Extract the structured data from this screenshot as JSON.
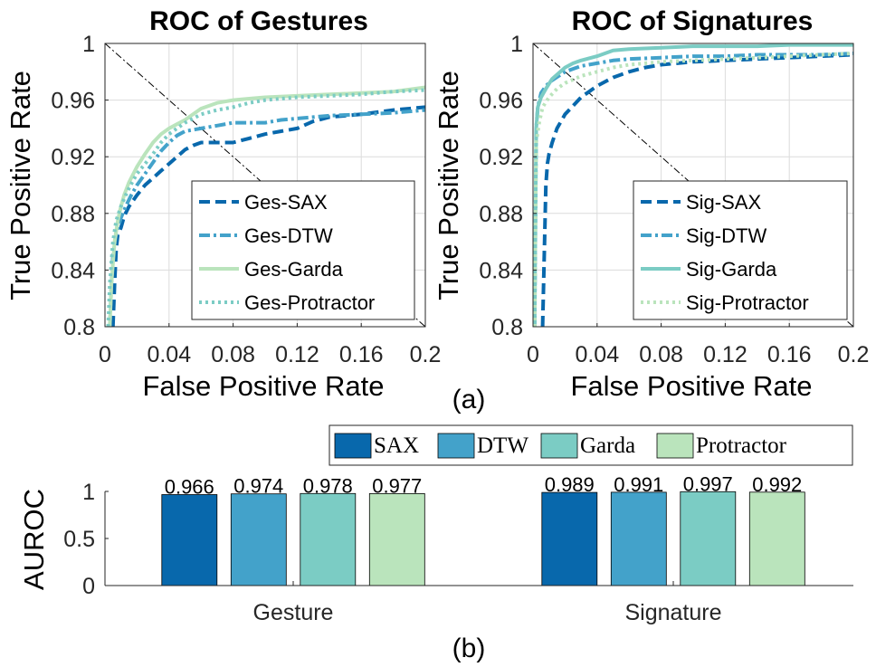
{
  "chart_data": [
    {
      "type": "line",
      "title": "ROC of Gestures",
      "xlabel": "False Positive Rate",
      "ylabel": "True Positive Rate",
      "xlim": [
        0,
        0.2
      ],
      "ylim": [
        0.8,
        1
      ],
      "xticks": [
        "0",
        "0.04",
        "0.08",
        "0.12",
        "0.16",
        "0.2"
      ],
      "yticks": [
        "0.8",
        "0.84",
        "0.88",
        "0.92",
        "0.96",
        "1"
      ],
      "legend_position": "bottom-right",
      "grid": true,
      "diagonal": true,
      "series": [
        {
          "name": "Ges-SAX",
          "color": "#0868ac",
          "style": "dashed",
          "x": [
            0.005,
            0.006,
            0.007,
            0.008,
            0.01,
            0.012,
            0.015,
            0.02,
            0.025,
            0.03,
            0.035,
            0.04,
            0.045,
            0.05,
            0.055,
            0.06,
            0.07,
            0.08,
            0.09,
            0.1,
            0.11,
            0.12,
            0.13,
            0.14,
            0.16,
            0.18,
            0.2
          ],
          "y": [
            0.8,
            0.83,
            0.855,
            0.865,
            0.87,
            0.878,
            0.885,
            0.893,
            0.9,
            0.905,
            0.91,
            0.915,
            0.92,
            0.925,
            0.928,
            0.93,
            0.93,
            0.93,
            0.933,
            0.936,
            0.938,
            0.94,
            0.945,
            0.948,
            0.95,
            0.953,
            0.955
          ]
        },
        {
          "name": "Ges-DTW",
          "color": "#43a2ca",
          "style": "dashdot",
          "x": [
            0.003,
            0.004,
            0.005,
            0.007,
            0.01,
            0.013,
            0.016,
            0.02,
            0.025,
            0.03,
            0.035,
            0.04,
            0.045,
            0.05,
            0.06,
            0.07,
            0.08,
            0.09,
            0.1,
            0.11,
            0.12,
            0.13,
            0.14,
            0.16,
            0.18,
            0.2
          ],
          "y": [
            0.8,
            0.83,
            0.85,
            0.866,
            0.877,
            0.885,
            0.892,
            0.9,
            0.908,
            0.916,
            0.924,
            0.93,
            0.935,
            0.938,
            0.94,
            0.942,
            0.944,
            0.944,
            0.944,
            0.946,
            0.947,
            0.948,
            0.949,
            0.95,
            0.951,
            0.953
          ]
        },
        {
          "name": "Ges-Garda",
          "color": "#bae4bc",
          "style": "solid",
          "x": [
            0.003,
            0.004,
            0.006,
            0.008,
            0.01,
            0.012,
            0.015,
            0.02,
            0.025,
            0.03,
            0.035,
            0.04,
            0.045,
            0.05,
            0.055,
            0.06,
            0.07,
            0.08,
            0.09,
            0.1,
            0.12,
            0.14,
            0.16,
            0.18,
            0.2
          ],
          "y": [
            0.8,
            0.83,
            0.86,
            0.875,
            0.885,
            0.893,
            0.902,
            0.913,
            0.922,
            0.93,
            0.936,
            0.94,
            0.943,
            0.946,
            0.95,
            0.954,
            0.958,
            0.96,
            0.961,
            0.962,
            0.963,
            0.964,
            0.965,
            0.966,
            0.969
          ]
        },
        {
          "name": "Ges-Protractor",
          "color": "#7bccc4",
          "style": "dotted",
          "x": [
            0.002,
            0.003,
            0.005,
            0.007,
            0.01,
            0.013,
            0.016,
            0.02,
            0.025,
            0.03,
            0.035,
            0.04,
            0.045,
            0.05,
            0.06,
            0.07,
            0.08,
            0.09,
            0.1,
            0.12,
            0.14,
            0.16,
            0.18,
            0.2
          ],
          "y": [
            0.8,
            0.83,
            0.86,
            0.875,
            0.885,
            0.893,
            0.9,
            0.908,
            0.915,
            0.922,
            0.93,
            0.936,
            0.94,
            0.944,
            0.95,
            0.953,
            0.955,
            0.958,
            0.96,
            0.962,
            0.963,
            0.964,
            0.966,
            0.967
          ]
        }
      ]
    },
    {
      "type": "line",
      "title": "ROC of Signatures",
      "xlabel": "False Positive Rate",
      "ylabel": "True Positive Rate",
      "xlim": [
        0,
        0.2
      ],
      "ylim": [
        0.8,
        1
      ],
      "xticks": [
        "0",
        "0.04",
        "0.08",
        "0.12",
        "0.16",
        "0.2"
      ],
      "yticks": [
        "0.8",
        "0.84",
        "0.88",
        "0.92",
        "0.96",
        "1"
      ],
      "legend_position": "bottom-right",
      "grid": true,
      "diagonal": true,
      "series": [
        {
          "name": "Sig-SAX",
          "color": "#0868ac",
          "style": "dashed",
          "x": [
            0.006,
            0.007,
            0.008,
            0.009,
            0.01,
            0.012,
            0.015,
            0.02,
            0.025,
            0.03,
            0.035,
            0.04,
            0.05,
            0.06,
            0.07,
            0.08,
            0.1,
            0.12,
            0.14,
            0.16,
            0.18,
            0.2
          ],
          "y": [
            0.8,
            0.85,
            0.9,
            0.915,
            0.922,
            0.93,
            0.94,
            0.95,
            0.956,
            0.962,
            0.966,
            0.97,
            0.976,
            0.98,
            0.983,
            0.985,
            0.987,
            0.988,
            0.989,
            0.99,
            0.991,
            0.992
          ]
        },
        {
          "name": "Sig-DTW",
          "color": "#43a2ca",
          "style": "dashdot",
          "x": [
            0.001,
            0.002,
            0.003,
            0.005,
            0.008,
            0.012,
            0.016,
            0.02,
            0.03,
            0.04,
            0.05,
            0.06,
            0.08,
            0.1,
            0.12,
            0.14,
            0.16,
            0.18,
            0.2
          ],
          "y": [
            0.8,
            0.94,
            0.955,
            0.965,
            0.97,
            0.974,
            0.977,
            0.98,
            0.984,
            0.986,
            0.988,
            0.989,
            0.99,
            0.991,
            0.991,
            0.992,
            0.992,
            0.992,
            0.993
          ]
        },
        {
          "name": "Sig-Garda",
          "color": "#7bccc4",
          "style": "solid",
          "x": [
            0.001,
            0.002,
            0.003,
            0.005,
            0.008,
            0.012,
            0.016,
            0.02,
            0.025,
            0.03,
            0.04,
            0.05,
            0.06,
            0.08,
            0.1,
            0.12,
            0.14,
            0.16,
            0.18,
            0.2
          ],
          "y": [
            0.8,
            0.94,
            0.955,
            0.962,
            0.968,
            0.975,
            0.979,
            0.983,
            0.986,
            0.988,
            0.991,
            0.995,
            0.996,
            0.997,
            0.998,
            0.998,
            0.998,
            0.999,
            0.999,
            0.999
          ]
        },
        {
          "name": "Sig-Protractor",
          "color": "#bae4bc",
          "style": "dotted",
          "x": [
            0.001,
            0.002,
            0.004,
            0.006,
            0.01,
            0.015,
            0.02,
            0.03,
            0.04,
            0.05,
            0.06,
            0.08,
            0.1,
            0.12,
            0.14,
            0.16,
            0.18,
            0.2
          ],
          "y": [
            0.8,
            0.93,
            0.945,
            0.955,
            0.962,
            0.968,
            0.972,
            0.977,
            0.98,
            0.983,
            0.985,
            0.987,
            0.988,
            0.989,
            0.99,
            0.991,
            0.992,
            0.993
          ]
        }
      ]
    },
    {
      "type": "bar",
      "ylabel": "AUROC",
      "categories": [
        "Gesture",
        "Signature"
      ],
      "ylim": [
        0,
        1
      ],
      "yticks": [
        "0",
        "0.5",
        "1"
      ],
      "legend_position": "top-right",
      "series": [
        {
          "name": "SAX",
          "color": "#0868ac",
          "values": [
            0.966,
            0.989
          ],
          "labels": [
            "0.966",
            "0.989"
          ]
        },
        {
          "name": "DTW",
          "color": "#43a2ca",
          "values": [
            0.974,
            0.991
          ],
          "labels": [
            "0.974",
            "0.991"
          ]
        },
        {
          "name": "Garda",
          "color": "#7bccc4",
          "values": [
            0.978,
            0.997
          ],
          "labels": [
            "0.978",
            "0.997"
          ]
        },
        {
          "name": "Protractor",
          "color": "#bae4bc",
          "values": [
            0.977,
            0.992
          ],
          "labels": [
            "0.977",
            "0.992"
          ]
        }
      ]
    }
  ],
  "captions": {
    "a": "(a)",
    "b": "(b)"
  }
}
